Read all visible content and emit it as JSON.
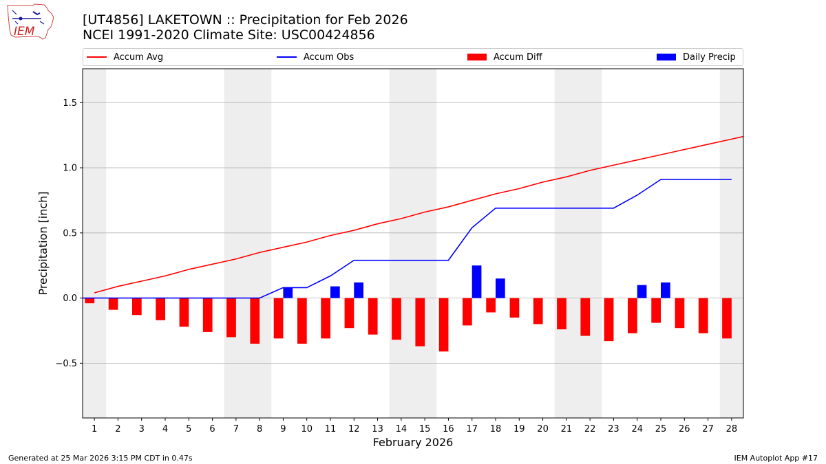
{
  "header": {
    "title_line1": "[UT4856] LAKETOWN :: Precipitation for Feb 2026",
    "title_line2": "NCEI 1991-2020 Climate Site: USC00424856",
    "logo_text": "IEM"
  },
  "footer": {
    "generated": "Generated at 25 Mar 2026 3:15 PM CDT in 0.47s",
    "app": "IEM Autoplot App #17"
  },
  "legend": {
    "accum_avg": "Accum Avg",
    "accum_obs": "Accum Obs",
    "accum_diff": "Accum Diff",
    "daily_precip": "Daily Precip"
  },
  "colors": {
    "avg": "#ff0000",
    "obs": "#0000ff",
    "diff": "#ff0000",
    "daily": "#0000ff",
    "weekend": "#eeeeee",
    "grid": "#b0b0b0"
  },
  "chart_data": {
    "type": "bar",
    "title": "[UT4856] LAKETOWN :: Precipitation for Feb 2026",
    "subtitle": "NCEI 1991-2020 Climate Site: USC00424856",
    "xlabel": "February 2026",
    "ylabel": "Precipitation [inch]",
    "xlim": [
      0.5,
      28.5
    ],
    "ylim": [
      -0.92,
      1.76
    ],
    "yticks": [
      -0.5,
      0.0,
      0.5,
      1.0,
      1.5
    ],
    "ytick_labels": [
      "−0.5",
      "0.0",
      "0.5",
      "1.0",
      "1.5"
    ],
    "days": [
      1,
      2,
      3,
      4,
      5,
      6,
      7,
      8,
      9,
      10,
      11,
      12,
      13,
      14,
      15,
      16,
      17,
      18,
      19,
      20,
      21,
      22,
      23,
      24,
      25,
      26,
      27,
      28
    ],
    "weekend_days": [
      1,
      7,
      8,
      14,
      15,
      21,
      22,
      28
    ],
    "legend_position": "top",
    "grid": "horizontal",
    "series": [
      {
        "name": "Accum Avg",
        "kind": "line",
        "values": [
          0.04,
          0.09,
          0.13,
          0.17,
          0.22,
          0.26,
          0.3,
          0.35,
          0.39,
          0.43,
          0.48,
          0.52,
          0.57,
          0.61,
          0.66,
          0.7,
          0.75,
          0.8,
          0.84,
          0.89,
          0.93,
          0.98,
          1.02,
          1.06,
          1.1,
          1.14,
          1.18,
          1.22
        ]
      },
      {
        "name": "Accum Obs",
        "kind": "line",
        "values": [
          0,
          0,
          0,
          0,
          0,
          0,
          0,
          0,
          0.08,
          0.08,
          0.17,
          0.29,
          0.29,
          0.29,
          0.29,
          0.29,
          0.54,
          0.69,
          0.69,
          0.69,
          0.69,
          0.69,
          0.69,
          0.79,
          0.91,
          0.91,
          0.91,
          0.91
        ]
      },
      {
        "name": "Accum Diff",
        "kind": "bar",
        "values": [
          -0.04,
          -0.09,
          -0.13,
          -0.17,
          -0.22,
          -0.26,
          -0.3,
          -0.35,
          -0.31,
          -0.35,
          -0.31,
          -0.23,
          -0.28,
          -0.32,
          -0.37,
          -0.41,
          -0.21,
          -0.11,
          -0.15,
          -0.2,
          -0.24,
          -0.29,
          -0.33,
          -0.27,
          -0.19,
          -0.23,
          -0.27,
          -0.31
        ]
      },
      {
        "name": "Daily Precip",
        "kind": "bar",
        "values": [
          0,
          0,
          0,
          0,
          0,
          0,
          0,
          0,
          0.08,
          0,
          0.09,
          0.12,
          0,
          0,
          0,
          0,
          0.25,
          0.15,
          0,
          0,
          0,
          0,
          0,
          0.1,
          0.12,
          0,
          0,
          0
        ]
      }
    ]
  }
}
